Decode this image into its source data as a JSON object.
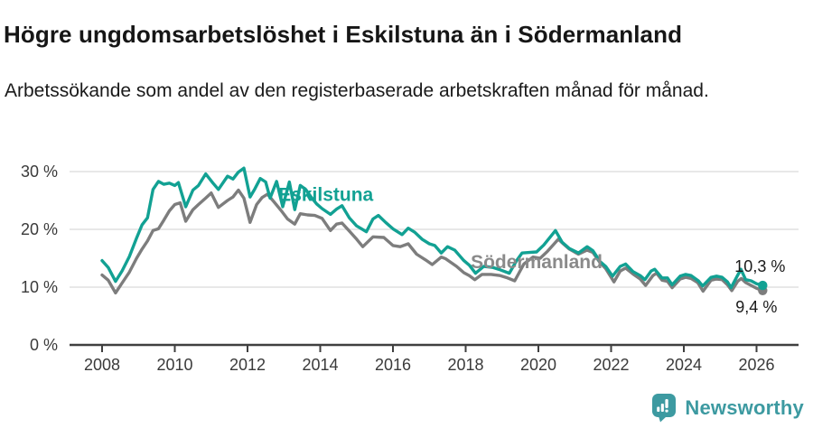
{
  "header": {
    "title": "Högre ungdomsarbetslöshet i Eskilstuna än i Södermanland",
    "subtitle": "Arbetssökande som andel av den registerbaserade arbetskraften månad för månad."
  },
  "chart_data": {
    "type": "line",
    "title": "Högre ungdomsarbetslöshet i Eskilstuna än i Södermanland",
    "xlabel": "",
    "ylabel": "Arbetssökande som andel av den registerbaserade arbetskraften",
    "grid": true,
    "legend_position": "inline-labels",
    "x_axis": {
      "ticks": [
        2008,
        2010,
        2012,
        2014,
        2016,
        2018,
        2020,
        2022,
        2024,
        2026
      ],
      "range": [
        2007.6,
        2027.2
      ]
    },
    "y_axis": {
      "tick_values": [
        0,
        10,
        20,
        30
      ],
      "tick_labels": [
        "0 %",
        "10 %",
        "20 %",
        "30 %"
      ],
      "grid_values": [
        10,
        20,
        30
      ],
      "range": [
        0,
        33
      ]
    },
    "series": [
      {
        "name": "Eskilstuna",
        "color": "#12a193",
        "label_color": "#12a193",
        "label_at": [
          2012.85,
          24.9
        ],
        "end_label": "10,3 %",
        "end_value": 10.3,
        "end_label_offset": [
          -31,
          -15
        ],
        "points": [
          [
            2008.0,
            14.6
          ],
          [
            2008.17,
            13.4
          ],
          [
            2008.37,
            11.0
          ],
          [
            2008.55,
            12.8
          ],
          [
            2008.75,
            15.3
          ],
          [
            2008.95,
            18.5
          ],
          [
            2009.1,
            20.8
          ],
          [
            2009.25,
            22.0
          ],
          [
            2009.4,
            26.9
          ],
          [
            2009.55,
            28.3
          ],
          [
            2009.7,
            27.8
          ],
          [
            2009.85,
            28.0
          ],
          [
            2010.0,
            27.6
          ],
          [
            2010.1,
            28.1
          ],
          [
            2010.3,
            23.9
          ],
          [
            2010.5,
            26.8
          ],
          [
            2010.65,
            27.6
          ],
          [
            2010.85,
            29.6
          ],
          [
            2011.05,
            28.0
          ],
          [
            2011.2,
            26.9
          ],
          [
            2011.45,
            29.2
          ],
          [
            2011.6,
            28.7
          ],
          [
            2011.75,
            29.9
          ],
          [
            2011.9,
            30.6
          ],
          [
            2012.07,
            25.6
          ],
          [
            2012.2,
            27.0
          ],
          [
            2012.35,
            28.8
          ],
          [
            2012.5,
            28.2
          ],
          [
            2012.62,
            25.4
          ],
          [
            2012.8,
            28.3
          ],
          [
            2012.97,
            23.9
          ],
          [
            2013.15,
            28.2
          ],
          [
            2013.3,
            23.4
          ],
          [
            2013.45,
            27.6
          ],
          [
            2013.6,
            26.9
          ],
          [
            2013.75,
            25.6
          ],
          [
            2013.9,
            24.4
          ],
          [
            2014.05,
            23.6
          ],
          [
            2014.28,
            22.6
          ],
          [
            2014.45,
            23.5
          ],
          [
            2014.6,
            24.1
          ],
          [
            2014.8,
            22.0
          ],
          [
            2015.0,
            20.6
          ],
          [
            2015.27,
            19.6
          ],
          [
            2015.45,
            21.8
          ],
          [
            2015.6,
            22.4
          ],
          [
            2015.8,
            21.2
          ],
          [
            2016.0,
            20.1
          ],
          [
            2016.25,
            19.1
          ],
          [
            2016.42,
            20.2
          ],
          [
            2016.6,
            19.5
          ],
          [
            2016.8,
            18.3
          ],
          [
            2017.0,
            17.5
          ],
          [
            2017.15,
            17.2
          ],
          [
            2017.33,
            15.9
          ],
          [
            2017.5,
            17.0
          ],
          [
            2017.7,
            16.4
          ],
          [
            2017.95,
            14.6
          ],
          [
            2018.1,
            13.8
          ],
          [
            2018.27,
            12.4
          ],
          [
            2018.5,
            13.6
          ],
          [
            2018.75,
            13.4
          ],
          [
            2018.95,
            13.0
          ],
          [
            2019.2,
            12.4
          ],
          [
            2019.4,
            14.6
          ],
          [
            2019.55,
            15.9
          ],
          [
            2019.75,
            16.0
          ],
          [
            2019.95,
            16.1
          ],
          [
            2020.15,
            17.3
          ],
          [
            2020.47,
            19.8
          ],
          [
            2020.65,
            17.8
          ],
          [
            2020.85,
            16.7
          ],
          [
            2021.1,
            15.9
          ],
          [
            2021.34,
            17.0
          ],
          [
            2021.5,
            16.3
          ],
          [
            2021.7,
            14.4
          ],
          [
            2021.85,
            13.6
          ],
          [
            2022.04,
            11.9
          ],
          [
            2022.25,
            13.6
          ],
          [
            2022.4,
            14.0
          ],
          [
            2022.6,
            12.7
          ],
          [
            2022.8,
            12.0
          ],
          [
            2022.93,
            11.3
          ],
          [
            2023.1,
            12.8
          ],
          [
            2023.2,
            13.1
          ],
          [
            2023.4,
            11.6
          ],
          [
            2023.55,
            11.6
          ],
          [
            2023.68,
            10.4
          ],
          [
            2023.9,
            11.9
          ],
          [
            2024.05,
            12.2
          ],
          [
            2024.2,
            12.0
          ],
          [
            2024.4,
            11.1
          ],
          [
            2024.52,
            10.2
          ],
          [
            2024.75,
            11.7
          ],
          [
            2024.9,
            11.9
          ],
          [
            2025.05,
            11.7
          ],
          [
            2025.2,
            10.9
          ],
          [
            2025.3,
            9.9
          ],
          [
            2025.45,
            11.7
          ],
          [
            2025.57,
            13.1
          ],
          [
            2025.7,
            11.3
          ],
          [
            2025.85,
            11.1
          ],
          [
            2026.0,
            10.6
          ],
          [
            2026.17,
            10.3
          ]
        ]
      },
      {
        "name": "Södermanland",
        "color": "#7d7d7d",
        "label_color": "#8a8a8a",
        "label_at": [
          2018.14,
          13.3
        ],
        "end_label": "9,4 %",
        "end_value": 9.4,
        "end_label_offset": [
          -30,
          24
        ],
        "points": [
          [
            2008.0,
            12.1
          ],
          [
            2008.17,
            11.2
          ],
          [
            2008.37,
            9.0
          ],
          [
            2008.55,
            10.7
          ],
          [
            2008.75,
            12.6
          ],
          [
            2008.95,
            15.0
          ],
          [
            2009.1,
            16.6
          ],
          [
            2009.25,
            18.0
          ],
          [
            2009.4,
            19.8
          ],
          [
            2009.55,
            20.1
          ],
          [
            2009.7,
            21.6
          ],
          [
            2009.85,
            23.2
          ],
          [
            2010.0,
            24.3
          ],
          [
            2010.15,
            24.6
          ],
          [
            2010.3,
            21.4
          ],
          [
            2010.5,
            23.4
          ],
          [
            2010.65,
            24.3
          ],
          [
            2010.85,
            25.4
          ],
          [
            2011.0,
            26.3
          ],
          [
            2011.2,
            23.8
          ],
          [
            2011.45,
            25.0
          ],
          [
            2011.6,
            25.6
          ],
          [
            2011.75,
            26.8
          ],
          [
            2011.9,
            25.4
          ],
          [
            2012.07,
            21.2
          ],
          [
            2012.25,
            24.3
          ],
          [
            2012.4,
            25.5
          ],
          [
            2012.55,
            26.1
          ],
          [
            2012.75,
            24.6
          ],
          [
            2012.92,
            23.3
          ],
          [
            2013.1,
            21.8
          ],
          [
            2013.3,
            20.9
          ],
          [
            2013.45,
            22.7
          ],
          [
            2013.65,
            22.5
          ],
          [
            2013.85,
            22.4
          ],
          [
            2014.05,
            21.9
          ],
          [
            2014.28,
            19.8
          ],
          [
            2014.45,
            20.9
          ],
          [
            2014.6,
            21.1
          ],
          [
            2014.8,
            19.7
          ],
          [
            2015.0,
            18.3
          ],
          [
            2015.17,
            17.0
          ],
          [
            2015.45,
            18.7
          ],
          [
            2015.75,
            18.6
          ],
          [
            2016.0,
            17.2
          ],
          [
            2016.2,
            17.0
          ],
          [
            2016.42,
            17.5
          ],
          [
            2016.65,
            15.7
          ],
          [
            2016.9,
            14.7
          ],
          [
            2017.08,
            13.9
          ],
          [
            2017.33,
            15.2
          ],
          [
            2017.45,
            14.9
          ],
          [
            2017.75,
            13.6
          ],
          [
            2017.95,
            12.5
          ],
          [
            2018.1,
            12.0
          ],
          [
            2018.25,
            11.3
          ],
          [
            2018.45,
            12.2
          ],
          [
            2018.7,
            12.2
          ],
          [
            2018.95,
            12.0
          ],
          [
            2019.15,
            11.6
          ],
          [
            2019.35,
            11.1
          ],
          [
            2019.6,
            14.0
          ],
          [
            2019.85,
            15.2
          ],
          [
            2020.05,
            15.0
          ],
          [
            2020.25,
            16.2
          ],
          [
            2020.55,
            18.3
          ],
          [
            2020.7,
            17.4
          ],
          [
            2020.85,
            16.6
          ],
          [
            2021.1,
            15.7
          ],
          [
            2021.34,
            16.4
          ],
          [
            2021.5,
            16.0
          ],
          [
            2021.7,
            14.2
          ],
          [
            2021.85,
            13.2
          ],
          [
            2022.08,
            10.9
          ],
          [
            2022.25,
            12.8
          ],
          [
            2022.4,
            13.3
          ],
          [
            2022.6,
            12.3
          ],
          [
            2022.8,
            11.4
          ],
          [
            2022.95,
            10.3
          ],
          [
            2023.15,
            12.0
          ],
          [
            2023.25,
            12.4
          ],
          [
            2023.4,
            11.2
          ],
          [
            2023.55,
            11.0
          ],
          [
            2023.68,
            9.9
          ],
          [
            2023.9,
            11.4
          ],
          [
            2024.05,
            11.7
          ],
          [
            2024.2,
            11.5
          ],
          [
            2024.38,
            10.8
          ],
          [
            2024.53,
            9.3
          ],
          [
            2024.75,
            11.2
          ],
          [
            2024.9,
            11.4
          ],
          [
            2025.05,
            11.3
          ],
          [
            2025.2,
            10.4
          ],
          [
            2025.32,
            9.4
          ],
          [
            2025.48,
            11.0
          ],
          [
            2025.58,
            11.5
          ],
          [
            2025.7,
            10.8
          ],
          [
            2025.85,
            10.3
          ],
          [
            2026.0,
            9.8
          ],
          [
            2026.17,
            9.4
          ]
        ]
      }
    ]
  },
  "footer": {
    "brand": "Newsworthy",
    "brand_color": "#3d9aa1",
    "logo_icon": "speech-bubble-bar-chart-exclamation"
  }
}
